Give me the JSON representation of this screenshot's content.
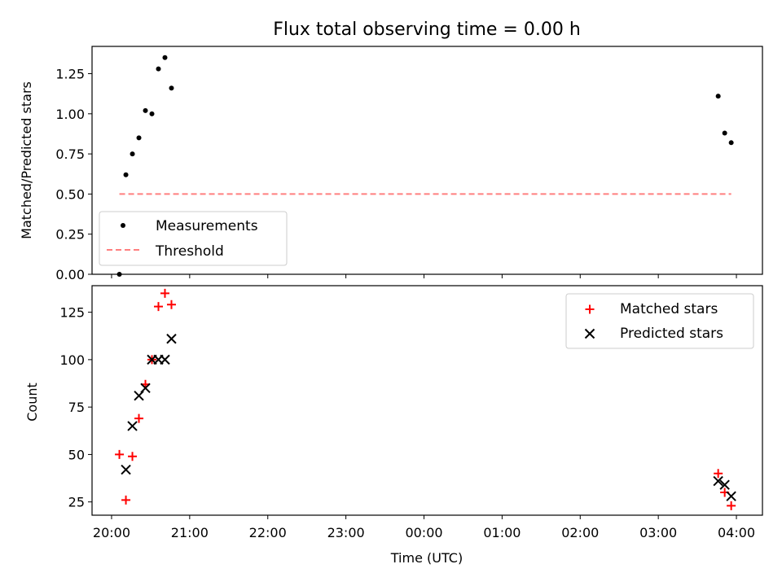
{
  "figure": {
    "title": "Flux total observing time = 0.00 h",
    "xlabel": "Time (UTC)"
  },
  "chart_data": [
    {
      "type": "scatter",
      "title": "Flux total observing time = 0.00 h",
      "ylabel": "Matched/Predicted stars",
      "xlim": [
        "19:45",
        "04:20"
      ],
      "ylim": [
        0,
        1.42
      ],
      "y_ticks": [
        "0.00",
        "0.25",
        "0.50",
        "0.75",
        "1.00",
        "1.25"
      ],
      "grid": false,
      "legend_position": "lower-left",
      "series": [
        {
          "name": "Measurements",
          "marker": "dot",
          "color": "#000000",
          "points": [
            {
              "x": "20:06",
              "y": 0.0
            },
            {
              "x": "20:11",
              "y": 0.62
            },
            {
              "x": "20:16",
              "y": 0.75
            },
            {
              "x": "20:21",
              "y": 0.85
            },
            {
              "x": "20:26",
              "y": 1.02
            },
            {
              "x": "20:31",
              "y": 1.0
            },
            {
              "x": "20:36",
              "y": 1.28
            },
            {
              "x": "20:41",
              "y": 1.35
            },
            {
              "x": "20:46",
              "y": 1.16
            },
            {
              "x": "03:46",
              "y": 1.11
            },
            {
              "x": "03:51",
              "y": 0.88
            },
            {
              "x": "03:56",
              "y": 0.82
            }
          ]
        },
        {
          "name": "Threshold",
          "style": "dashed",
          "color": "#ff7f7f",
          "points": [
            {
              "x": "20:06",
              "y": 0.5
            },
            {
              "x": "03:56",
              "y": 0.5
            }
          ]
        }
      ]
    },
    {
      "type": "scatter",
      "ylabel": "Count",
      "xlabel": "Time (UTC)",
      "xlim": [
        "19:45",
        "04:20"
      ],
      "ylim": [
        18,
        139
      ],
      "x_ticks": [
        "20:00",
        "21:00",
        "22:00",
        "23:00",
        "00:00",
        "01:00",
        "02:00",
        "03:00",
        "04:00"
      ],
      "y_ticks": [
        "25",
        "50",
        "75",
        "100",
        "125"
      ],
      "grid": false,
      "legend_position": "upper-right",
      "series": [
        {
          "name": "Matched stars",
          "marker": "plus",
          "color": "#ff0000",
          "points": [
            {
              "x": "20:06",
              "y": 50
            },
            {
              "x": "20:11",
              "y": 26
            },
            {
              "x": "20:16",
              "y": 49
            },
            {
              "x": "20:21",
              "y": 69
            },
            {
              "x": "20:26",
              "y": 87
            },
            {
              "x": "20:31",
              "y": 100
            },
            {
              "x": "20:36",
              "y": 128
            },
            {
              "x": "20:41",
              "y": 135
            },
            {
              "x": "20:46",
              "y": 129
            },
            {
              "x": "03:46",
              "y": 40
            },
            {
              "x": "03:51",
              "y": 30
            },
            {
              "x": "03:56",
              "y": 23
            }
          ]
        },
        {
          "name": "Predicted stars",
          "marker": "x",
          "color": "#000000",
          "points": [
            {
              "x": "20:11",
              "y": 42
            },
            {
              "x": "20:16",
              "y": 65
            },
            {
              "x": "20:21",
              "y": 81
            },
            {
              "x": "20:26",
              "y": 85
            },
            {
              "x": "20:31",
              "y": 100
            },
            {
              "x": "20:36",
              "y": 100
            },
            {
              "x": "20:41",
              "y": 100
            },
            {
              "x": "20:46",
              "y": 111
            },
            {
              "x": "03:46",
              "y": 36
            },
            {
              "x": "03:51",
              "y": 34
            },
            {
              "x": "03:56",
              "y": 28
            }
          ]
        }
      ]
    }
  ]
}
